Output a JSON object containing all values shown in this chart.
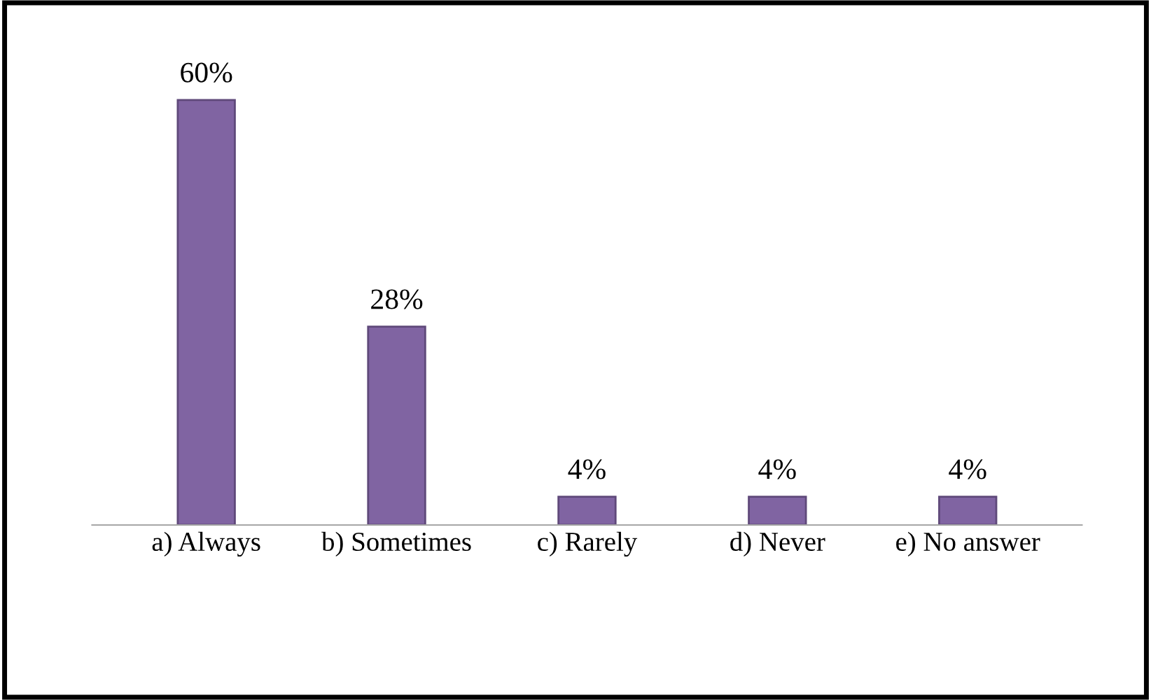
{
  "chart_data": {
    "type": "bar",
    "categories": [
      "a) Always",
      "b) Sometimes",
      "c) Rarely",
      "d) Never",
      "e) No answer"
    ],
    "values": [
      60,
      28,
      4,
      4,
      4
    ],
    "value_labels": [
      "60%",
      "28%",
      "4%",
      "4%",
      "4%"
    ],
    "color": "#8064a2",
    "grid": false,
    "legend": false,
    "tick_labels": "x"
  }
}
